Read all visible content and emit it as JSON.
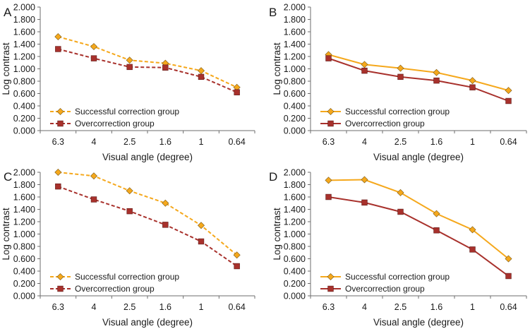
{
  "figure": {
    "x_axis_label": "Visual angle (degree)",
    "y_axis_label": "Log contrast",
    "legend": [
      "Successful correction group",
      "Overcorrection group"
    ],
    "colors": {
      "successful": "#f5a81c",
      "overcorrection": "#a8312c",
      "axis": "#6e6e6e"
    }
  },
  "chart_data": [
    {
      "panel": "A",
      "type": "line",
      "line_style": "dashed",
      "categories": [
        "6.3",
        "4",
        "2.5",
        "1.6",
        "1",
        "0.64"
      ],
      "ylim": [
        0,
        2.0
      ],
      "yticks": [
        "0.000",
        "0.200",
        "0.400",
        "0.600",
        "0.800",
        "1.000",
        "1.200",
        "1.400",
        "1.600",
        "1.800",
        "2.000"
      ],
      "xlabel": "Visual angle (degree)",
      "ylabel": "Log contrast",
      "legend_position": "bottom-left",
      "series": [
        {
          "name": "Successful correction group",
          "values": [
            1.52,
            1.36,
            1.14,
            1.09,
            0.97,
            0.7
          ]
        },
        {
          "name": "Overcorrection group",
          "values": [
            1.32,
            1.17,
            1.03,
            1.02,
            0.87,
            0.62
          ]
        }
      ]
    },
    {
      "panel": "B",
      "type": "line",
      "line_style": "solid",
      "categories": [
        "6.3",
        "4",
        "2.5",
        "1.6",
        "1",
        "0.64"
      ],
      "ylim": [
        0,
        2.0
      ],
      "yticks": [
        "0.000",
        "0.200",
        "0.400",
        "0.600",
        "0.800",
        "1.000",
        "1.200",
        "1.400",
        "1.600",
        "1.800",
        "2.000"
      ],
      "xlabel": "Visual angle (degree)",
      "ylabel": "Log contrast",
      "legend_position": "bottom-left",
      "series": [
        {
          "name": "Successful correction group",
          "values": [
            1.23,
            1.07,
            1.01,
            0.94,
            0.81,
            0.65
          ]
        },
        {
          "name": "Overcorrection group",
          "values": [
            1.17,
            0.97,
            0.87,
            0.81,
            0.7,
            0.48
          ]
        }
      ]
    },
    {
      "panel": "C",
      "type": "line",
      "line_style": "dashed",
      "categories": [
        "6.3",
        "4",
        "2.5",
        "1.6",
        "1",
        "0.64"
      ],
      "ylim": [
        0,
        2.0
      ],
      "yticks": [
        "0.000",
        "0.200",
        "0.400",
        "0.600",
        "0.800",
        "1.000",
        "1.200",
        "1.400",
        "1.600",
        "1.800",
        "2.000"
      ],
      "xlabel": "Visual angle (degree)",
      "ylabel": "Log contrast",
      "legend_position": "bottom-left",
      "series": [
        {
          "name": "Successful correction group",
          "values": [
            2.0,
            1.94,
            1.7,
            1.5,
            1.14,
            0.66
          ]
        },
        {
          "name": "Overcorrection group",
          "values": [
            1.77,
            1.56,
            1.37,
            1.15,
            0.88,
            0.48
          ]
        }
      ]
    },
    {
      "panel": "D",
      "type": "line",
      "line_style": "solid",
      "categories": [
        "6.3",
        "4",
        "2.5",
        "1.6",
        "1",
        "0.64"
      ],
      "ylim": [
        0,
        2.0
      ],
      "yticks": [
        "0.000",
        "0.200",
        "0.400",
        "0.600",
        "0.800",
        "1.000",
        "1.200",
        "1.400",
        "1.600",
        "1.800",
        "2.000"
      ],
      "xlabel": "Visual angle (degree)",
      "ylabel": "Log contrast",
      "legend_position": "bottom-left",
      "series": [
        {
          "name": "Successful correction group",
          "values": [
            1.87,
            1.88,
            1.67,
            1.33,
            1.07,
            0.6
          ]
        },
        {
          "name": "Overcorrection group",
          "values": [
            1.6,
            1.51,
            1.36,
            1.06,
            0.75,
            0.32
          ]
        }
      ]
    }
  ]
}
